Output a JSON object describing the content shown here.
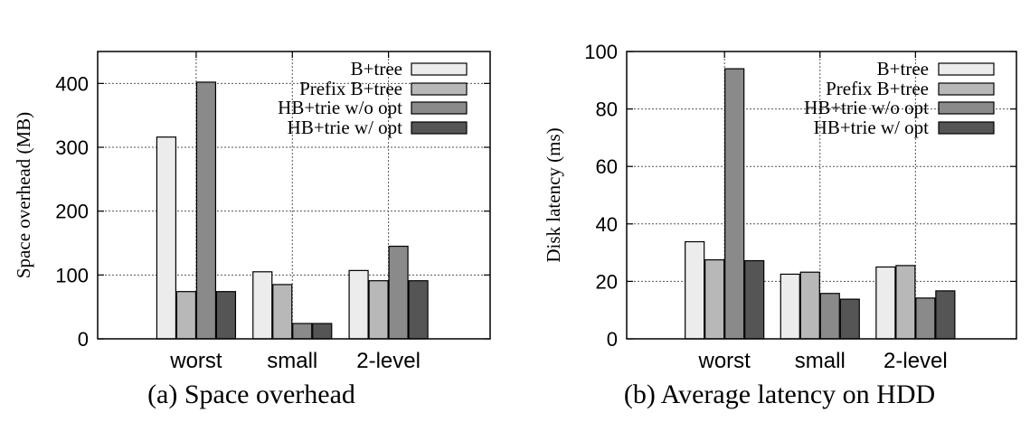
{
  "charts": [
    {
      "caption": "(a) Space overhead",
      "chart_data": {
        "type": "bar",
        "categories": [
          "worst",
          "small",
          "2-level"
        ],
        "series": [
          {
            "name": "B+tree",
            "values": [
              316,
              105,
              107
            ]
          },
          {
            "name": "Prefix B+tree",
            "values": [
              74,
              85,
              91
            ]
          },
          {
            "name": "HB+trie w/o opt",
            "values": [
              402,
              24,
              145
            ]
          },
          {
            "name": "HB+trie w/ opt",
            "values": [
              74,
              24,
              91
            ]
          }
        ],
        "title": "",
        "xlabel": "",
        "ylabel": "Space overhead (MB)",
        "ylim": [
          0,
          450
        ],
        "yticks": [
          "0",
          "100",
          "200",
          "300",
          "400"
        ],
        "grid": true,
        "legend_position": "top-right"
      }
    },
    {
      "caption": "(b) Average latency on HDD",
      "chart_data": {
        "type": "bar",
        "categories": [
          "worst",
          "small",
          "2-level"
        ],
        "series": [
          {
            "name": "B+tree",
            "values": [
              33.8,
              22.5,
              25.0
            ]
          },
          {
            "name": "Prefix B+tree",
            "values": [
              27.5,
              23.2,
              25.5
            ]
          },
          {
            "name": "HB+trie w/o opt",
            "values": [
              94.0,
              15.8,
              14.2
            ]
          },
          {
            "name": "HB+trie w/ opt",
            "values": [
              27.2,
              13.8,
              16.7
            ]
          }
        ],
        "title": "",
        "xlabel": "",
        "ylabel": "Disk latency (ms)",
        "ylim": [
          0,
          100
        ],
        "yticks": [
          "0",
          "20",
          "40",
          "60",
          "80",
          "100"
        ],
        "grid": true,
        "legend_position": "top-right"
      }
    }
  ],
  "series_colors": [
    "#ececec",
    "#b8b8b8",
    "#8a8a8a",
    "#555555"
  ]
}
